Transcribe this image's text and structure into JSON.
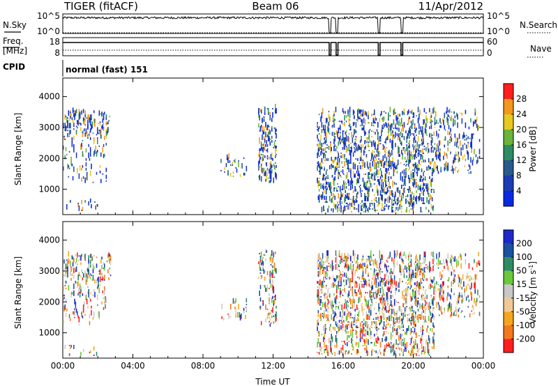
{
  "header": {
    "station": "TIGER (fitACF)",
    "beam": "Beam 06",
    "date": "11/Apr/2012"
  },
  "panels": {
    "nsky": {
      "label": "N.Sky",
      "ticks_left": [
        "10^5",
        "10^0"
      ],
      "ticks_right": [
        "10^5",
        "10^0"
      ],
      "right_label": "N.Search"
    },
    "freq": {
      "label_line1": "Freq.",
      "label_line2": "[MHz]",
      "ticks_left": [
        "18",
        "8"
      ],
      "ticks_right": [
        "60",
        "0"
      ],
      "right_label": "Nave"
    },
    "cpid": {
      "label": "CPID",
      "value": "normal (fast) 151"
    }
  },
  "colors": {
    "power": [
      "#0a28e0",
      "#1c3cb4",
      "#285a8c",
      "#2e8c64",
      "#6ab43a",
      "#e6c81e",
      "#f5961e",
      "#f5641e",
      "#ff1e1e"
    ],
    "velocity": [
      "#ff1e1e",
      "#f5781e",
      "#f5a61e",
      "#f0c896",
      "#c8c8c8",
      "#6ac83a",
      "#2e8c64",
      "#1c50a0",
      "#1e28c8"
    ]
  },
  "chart_data": [
    {
      "type": "heatmap",
      "name": "power-panel",
      "xlabel": "",
      "ylabel": "Slant Range [km]",
      "x_ticks": [
        "00:00",
        "04:00",
        "08:00",
        "12:00",
        "16:00",
        "20:00",
        "00:00"
      ],
      "x_range": [
        0,
        24
      ],
      "y_ticks": [
        1000,
        2000,
        3000,
        4000
      ],
      "ylim": [
        180,
        4600
      ],
      "colorbar_label": "Power [dB]",
      "colorbar_ticks": [
        4,
        8,
        12,
        16,
        20,
        24,
        28
      ],
      "colorbar_range": [
        0,
        32
      ],
      "scatter_regions": [
        {
          "t": [
            0.0,
            2.8
          ],
          "r": [
            2700,
            3500
          ],
          "density": 0.55
        },
        {
          "t": [
            0.0,
            2.5
          ],
          "r": [
            1200,
            2700
          ],
          "density": 0.25
        },
        {
          "t": [
            0.0,
            2.0
          ],
          "r": [
            250,
            600
          ],
          "density": 0.15
        },
        {
          "t": [
            9.0,
            10.5
          ],
          "r": [
            1400,
            2000
          ],
          "density": 0.3
        },
        {
          "t": [
            11.2,
            12.2
          ],
          "r": [
            1200,
            3600
          ],
          "density": 0.55
        },
        {
          "t": [
            14.5,
            21.2
          ],
          "r": [
            250,
            3500
          ],
          "density": 0.65
        },
        {
          "t": [
            21.2,
            23.8
          ],
          "r": [
            1500,
            3500
          ],
          "density": 0.35
        }
      ]
    },
    {
      "type": "heatmap",
      "name": "velocity-panel",
      "xlabel": "Time UT",
      "ylabel": "Slant Range [km]",
      "x_ticks": [
        "00:00",
        "04:00",
        "08:00",
        "12:00",
        "16:00",
        "20:00",
        "00:00"
      ],
      "x_range": [
        0,
        24
      ],
      "y_ticks": [
        1000,
        2000,
        3000,
        4000
      ],
      "ylim": [
        180,
        4600
      ],
      "colorbar_label": "Velocity [m s^-1]",
      "colorbar_ticks": [
        200,
        100,
        50,
        15,
        -15,
        -50,
        -100,
        -200
      ],
      "scatter_regions": [
        {
          "t": [
            0.0,
            2.8
          ],
          "r": [
            2700,
            3500
          ],
          "density": 0.55
        },
        {
          "t": [
            0.0,
            2.5
          ],
          "r": [
            1200,
            2700
          ],
          "density": 0.25
        },
        {
          "t": [
            0.0,
            2.0
          ],
          "r": [
            250,
            600
          ],
          "density": 0.15
        },
        {
          "t": [
            9.0,
            10.5
          ],
          "r": [
            1400,
            2000
          ],
          "density": 0.3
        },
        {
          "t": [
            11.2,
            12.2
          ],
          "r": [
            1200,
            3600
          ],
          "density": 0.55
        },
        {
          "t": [
            14.5,
            21.2
          ],
          "r": [
            250,
            3500
          ],
          "density": 0.65
        },
        {
          "t": [
            21.2,
            23.8
          ],
          "r": [
            1500,
            3500
          ],
          "density": 0.35
        }
      ]
    }
  ]
}
